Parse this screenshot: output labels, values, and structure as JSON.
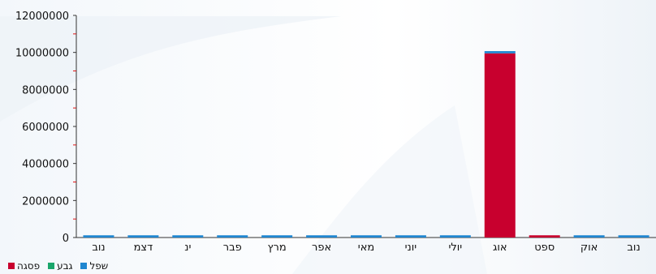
{
  "chart_data": {
    "type": "bar",
    "stacked": true,
    "categories": [
      "נוב",
      "דצמ",
      "ינ",
      "פבר",
      "מרץ",
      "אפר",
      "מאי",
      "יוני",
      "יולי",
      "אוג",
      "ספט",
      "אוק",
      "נוב"
    ],
    "series": [
      {
        "name": "פסגה",
        "color": "#c8002e",
        "values": [
          0,
          0,
          0,
          0,
          0,
          0,
          0,
          0,
          0,
          9950000,
          120000,
          0,
          0
        ]
      },
      {
        "name": "גבע",
        "color": "#1aa66b",
        "values": [
          0,
          0,
          0,
          0,
          0,
          0,
          0,
          0,
          0,
          0,
          0,
          0,
          0
        ]
      },
      {
        "name": "שפל",
        "color": "#1f86d0",
        "values": [
          120000,
          120000,
          120000,
          120000,
          120000,
          120000,
          120000,
          120000,
          120000,
          120000,
          0,
          120000,
          120000
        ]
      }
    ],
    "yticks": [
      "0",
      "2000000",
      "4000000",
      "6000000",
      "8000000",
      "10000000",
      "12000000"
    ],
    "ylim": [
      0,
      12000000
    ],
    "legend_position": "bottom-left",
    "grid": false
  }
}
